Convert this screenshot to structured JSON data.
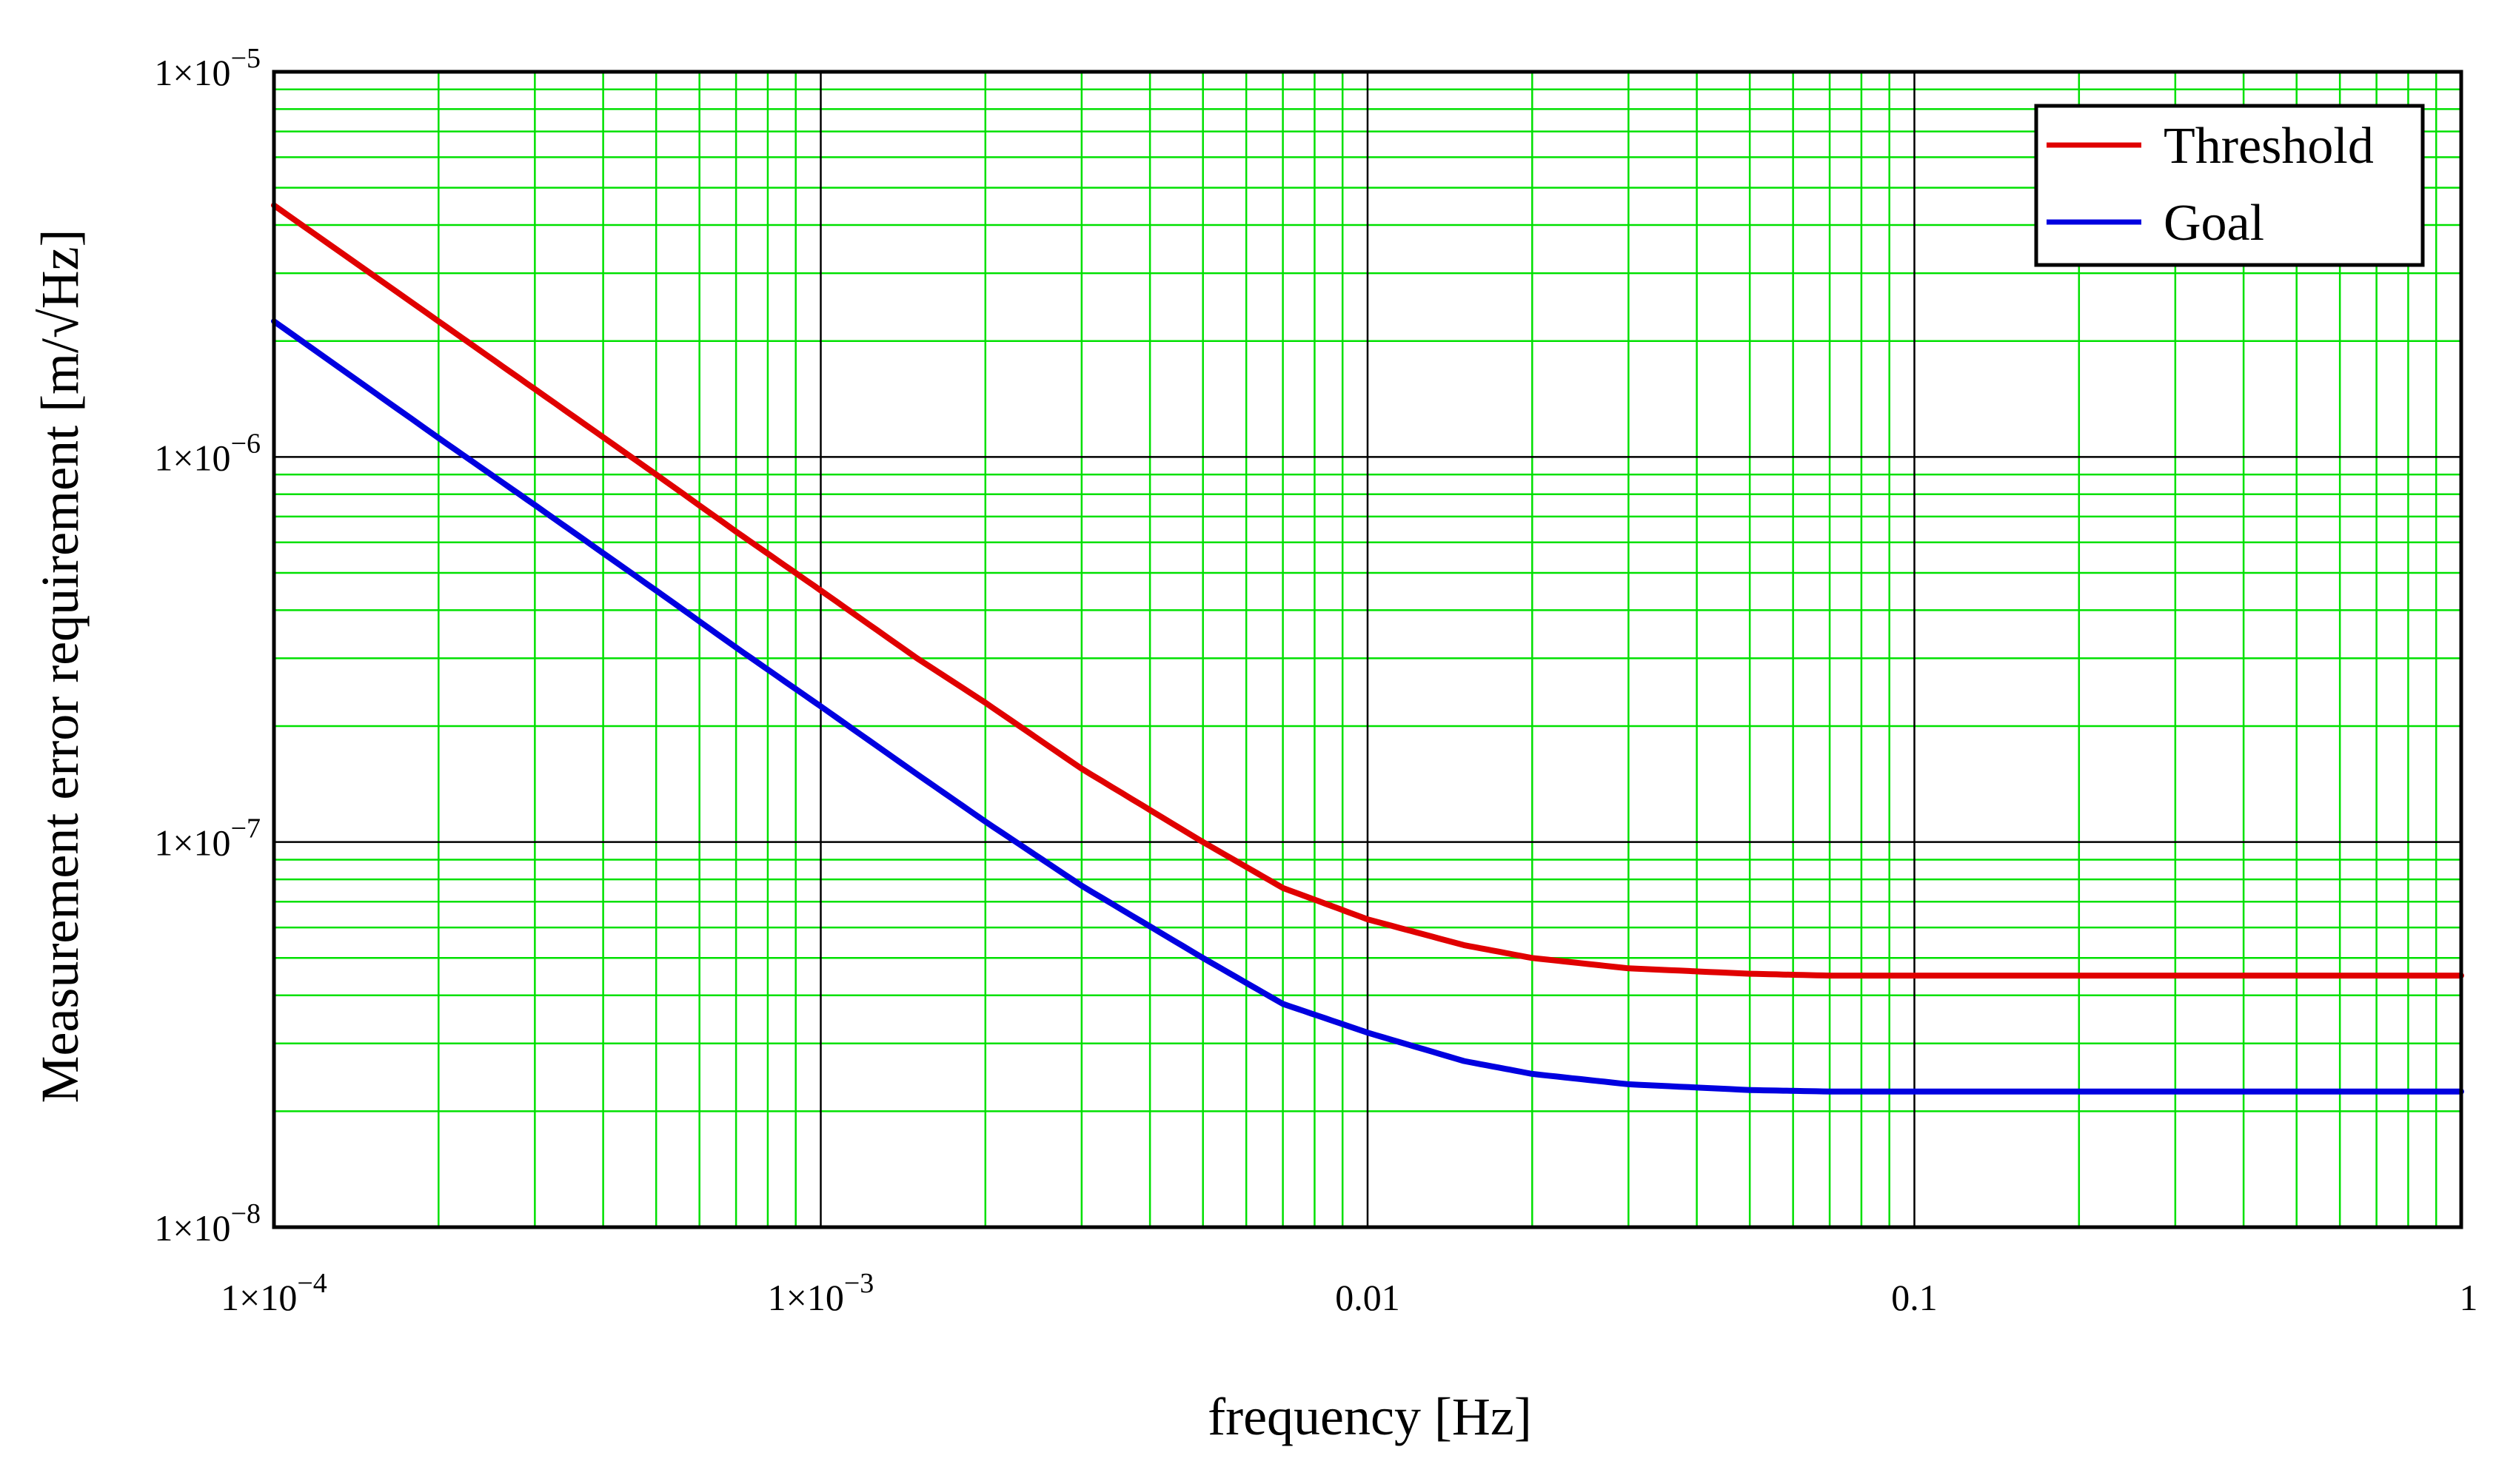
{
  "chart_data": {
    "type": "line",
    "title": "",
    "xlabel": "frequency [Hz]",
    "ylabel": "Measurement  error requirement  [m/√Hz]",
    "xscale": "log",
    "yscale": "log",
    "xlim": [
      0.0001,
      1
    ],
    "ylim": [
      1e-08,
      1e-05
    ],
    "grid": true,
    "legend_position": "top-right",
    "x_ticks": [
      {
        "value": 0.0001,
        "mantissa": "1×10",
        "exponent": "−4"
      },
      {
        "value": 0.001,
        "mantissa": "1×10",
        "exponent": "−3"
      },
      {
        "value": 0.01,
        "mantissa": "0.01",
        "exponent": ""
      },
      {
        "value": 0.1,
        "mantissa": "0.1",
        "exponent": ""
      },
      {
        "value": 1,
        "mantissa": "1",
        "exponent": ""
      }
    ],
    "y_ticks": [
      {
        "value": 1e-05,
        "mantissa": "1×10",
        "exponent": "−5"
      },
      {
        "value": 1e-06,
        "mantissa": "1×10",
        "exponent": "−6"
      },
      {
        "value": 1e-07,
        "mantissa": "1×10",
        "exponent": "−7"
      },
      {
        "value": 1e-08,
        "mantissa": "1×10",
        "exponent": "−8"
      }
    ],
    "series": [
      {
        "name": "Threshold",
        "color": "#e00000",
        "x": [
          0.0001,
          0.0002,
          0.0003,
          0.0005,
          0.0007,
          0.001,
          0.0015,
          0.002,
          0.003,
          0.005,
          0.007,
          0.01,
          0.015,
          0.02,
          0.03,
          0.05,
          0.07,
          0.1,
          0.2,
          0.5,
          1
        ],
        "y": [
          4.5e-06,
          2.25e-06,
          1.5e-06,
          9e-07,
          6.4e-07,
          4.5e-07,
          3e-07,
          2.3e-07,
          1.55e-07,
          1e-07,
          7.6e-08,
          6.3e-08,
          5.4e-08,
          5e-08,
          4.7e-08,
          4.55e-08,
          4.5e-08,
          4.5e-08,
          4.5e-08,
          4.5e-08,
          4.5e-08
        ]
      },
      {
        "name": "Goal",
        "color": "#0000e0",
        "x": [
          0.0001,
          0.0002,
          0.0003,
          0.0005,
          0.0007,
          0.001,
          0.0015,
          0.002,
          0.003,
          0.005,
          0.007,
          0.01,
          0.015,
          0.02,
          0.03,
          0.05,
          0.07,
          0.1,
          0.2,
          0.5,
          1
        ],
        "y": [
          2.25e-06,
          1.12e-06,
          7.5e-07,
          4.5e-07,
          3.2e-07,
          2.25e-07,
          1.5e-07,
          1.13e-07,
          7.7e-08,
          5e-08,
          3.8e-08,
          3.2e-08,
          2.7e-08,
          2.5e-08,
          2.35e-08,
          2.27e-08,
          2.25e-08,
          2.25e-08,
          2.25e-08,
          2.25e-08,
          2.25e-08
        ]
      }
    ],
    "colors": {
      "major_grid": "#000000",
      "minor_grid": "#00e000",
      "frame": "#000000",
      "background": "#ffffff"
    }
  }
}
